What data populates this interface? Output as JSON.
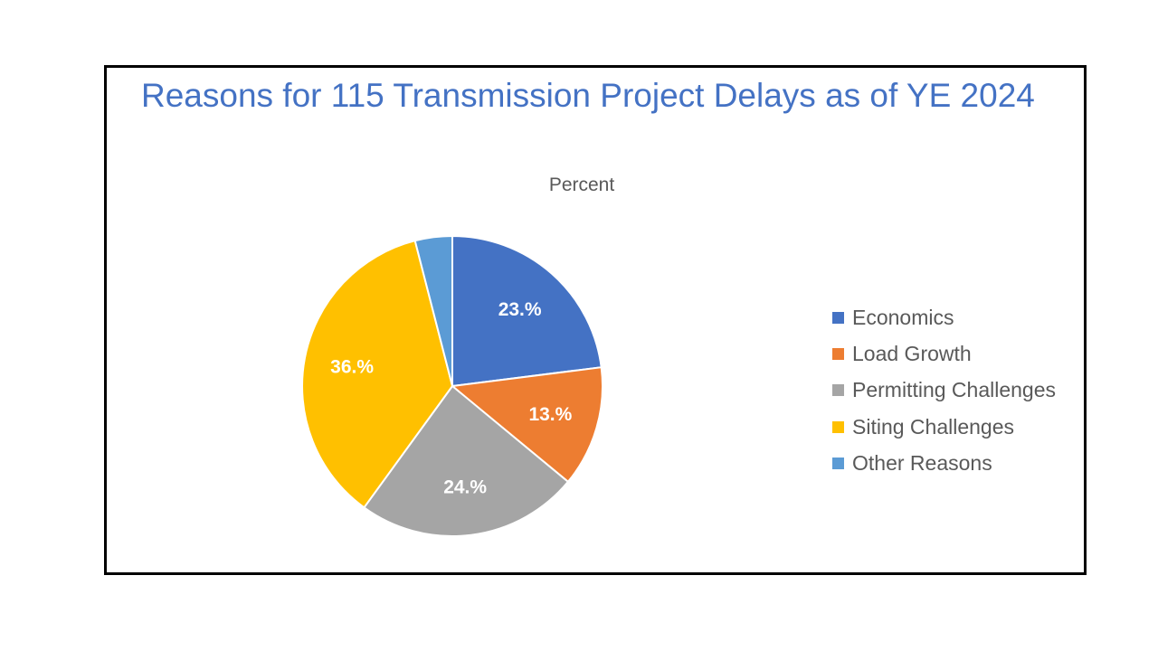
{
  "slide": {
    "title": "Reasons for 115 Transmission Project Delays as of YE 2024"
  },
  "chart_data": {
    "type": "pie",
    "title": "Percent",
    "categories": [
      "Economics",
      "Load Growth",
      "Permitting Challenges",
      "Siting Challenges",
      "Other Reasons"
    ],
    "values": [
      23,
      13,
      24,
      36,
      4
    ],
    "data_labels": [
      "23.%",
      "13.%",
      "24.%",
      "36.%",
      ""
    ],
    "colors": [
      "#4472C4",
      "#ED7D31",
      "#A5A5A5",
      "#FFC000",
      "#5B9BD5"
    ],
    "legend_position": "right",
    "start_angle": "top",
    "direction": "clockwise"
  }
}
